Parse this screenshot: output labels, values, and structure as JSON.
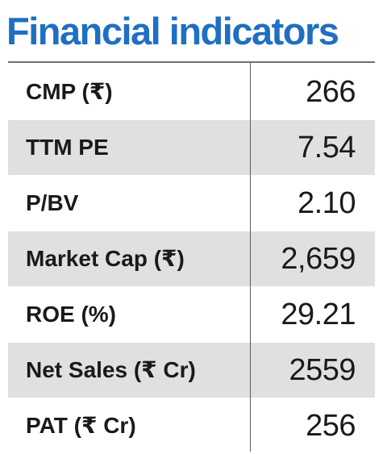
{
  "title": "Financial indicators",
  "indicators": [
    {
      "label": "CMP (₹)",
      "value": "266"
    },
    {
      "label": "TTM PE",
      "value": "7.54"
    },
    {
      "label": "P/BV",
      "value": "2.10"
    },
    {
      "label": "Market Cap (₹)",
      "value": "2,659"
    },
    {
      "label": "ROE (%)",
      "value": "29.21"
    },
    {
      "label": "Net Sales (₹ Cr)",
      "value": "2559"
    },
    {
      "label": "PAT (₹ Cr)",
      "value": "256"
    }
  ],
  "colors": {
    "title": "#1f6fc2",
    "row_shade": "#e0e0e0",
    "text": "#1a1a1a"
  }
}
